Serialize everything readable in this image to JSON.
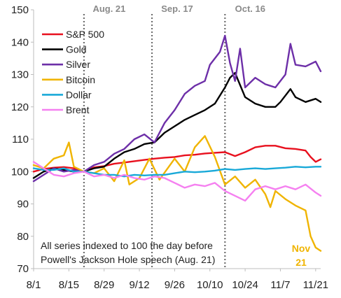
{
  "chart_data": {
    "type": "line",
    "ylim": [
      70,
      150
    ],
    "yticks": [
      70,
      80,
      90,
      100,
      110,
      120,
      130,
      140,
      150
    ],
    "xlim": [
      "2021-08-01",
      "2021-11-23"
    ],
    "xticks": [
      {
        "label": "8/1",
        "date": "2021-08-01"
      },
      {
        "label": "8/15",
        "date": "2021-08-15"
      },
      {
        "label": "8/29",
        "date": "2021-08-29"
      },
      {
        "label": "9/12",
        "date": "2021-09-12"
      },
      {
        "label": "9/26",
        "date": "2021-09-26"
      },
      {
        "label": "10/10",
        "date": "2021-10-10"
      },
      {
        "label": "10/24",
        "date": "2021-10-24"
      },
      {
        "label": "11/7",
        "date": "2021-11-07"
      },
      {
        "label": "11/21",
        "date": "2021-11-21"
      }
    ],
    "events": [
      {
        "label": "Aug. 21",
        "date": "2021-08-21"
      },
      {
        "label": "Sep. 17",
        "date": "2021-09-17"
      },
      {
        "label": "Oct. 16",
        "date": "2021-10-16"
      }
    ],
    "legend_position": "top-left",
    "grid": false,
    "annotation_lines": [
      "All series indexed to 100 the day before",
      "Powell's Jackson Hole speech (Aug. 21)"
    ],
    "end_label": {
      "lines": [
        "Nov",
        "21"
      ],
      "series": "Bitcoin"
    },
    "series": [
      {
        "name": "S&P 500",
        "color": "#e8101e",
        "x": [
          "2021-08-01",
          "2021-08-05",
          "2021-08-09",
          "2021-08-13",
          "2021-08-17",
          "2021-08-21",
          "2021-08-25",
          "2021-08-29",
          "2021-09-02",
          "2021-09-06",
          "2021-09-10",
          "2021-09-14",
          "2021-09-18",
          "2021-09-22",
          "2021-09-26",
          "2021-09-30",
          "2021-10-04",
          "2021-10-08",
          "2021-10-12",
          "2021-10-16",
          "2021-10-20",
          "2021-10-24",
          "2021-10-28",
          "2021-11-01",
          "2021-11-05",
          "2021-11-09",
          "2021-11-13",
          "2021-11-17",
          "2021-11-19",
          "2021-11-21",
          "2021-11-23"
        ],
        "y": [
          100.0,
          100.8,
          101.2,
          101.4,
          101.0,
          100.0,
          101.3,
          101.7,
          102.4,
          102.8,
          103.2,
          103.6,
          104.0,
          104.3,
          104.5,
          105.0,
          105.2,
          105.6,
          105.8,
          106.0,
          104.8,
          106.0,
          107.5,
          108.0,
          108.0,
          107.2,
          107.0,
          106.5,
          104.5,
          103.0,
          103.8
        ]
      },
      {
        "name": "Gold",
        "color": "#000000",
        "x": [
          "2021-08-01",
          "2021-08-05",
          "2021-08-09",
          "2021-08-13",
          "2021-08-17",
          "2021-08-21",
          "2021-08-25",
          "2021-08-29",
          "2021-09-02",
          "2021-09-06",
          "2021-09-10",
          "2021-09-14",
          "2021-09-18",
          "2021-09-22",
          "2021-09-26",
          "2021-09-30",
          "2021-10-04",
          "2021-10-08",
          "2021-10-12",
          "2021-10-16",
          "2021-10-18",
          "2021-10-20",
          "2021-10-24",
          "2021-10-28",
          "2021-11-01",
          "2021-11-05",
          "2021-11-07",
          "2021-11-11",
          "2021-11-13",
          "2021-11-17",
          "2021-11-21",
          "2021-11-23"
        ],
        "y": [
          98.0,
          100.0,
          101.0,
          100.5,
          100.0,
          100.0,
          101.0,
          101.5,
          104.0,
          106.0,
          107.0,
          108.5,
          109.0,
          112.0,
          114.0,
          116.0,
          117.5,
          119.0,
          121.0,
          126.0,
          129.0,
          130.5,
          123.0,
          121.0,
          120.0,
          120.0,
          121.5,
          125.5,
          123.0,
          121.5,
          122.5,
          121.5
        ]
      },
      {
        "name": "Silver",
        "color": "#6d2fa8",
        "x": [
          "2021-08-01",
          "2021-08-05",
          "2021-08-09",
          "2021-08-13",
          "2021-08-17",
          "2021-08-21",
          "2021-08-25",
          "2021-08-29",
          "2021-09-02",
          "2021-09-06",
          "2021-09-10",
          "2021-09-14",
          "2021-09-18",
          "2021-09-22",
          "2021-09-26",
          "2021-09-30",
          "2021-10-04",
          "2021-10-08",
          "2021-10-10",
          "2021-10-14",
          "2021-10-16",
          "2021-10-18",
          "2021-10-20",
          "2021-10-22",
          "2021-10-24",
          "2021-10-28",
          "2021-11-01",
          "2021-11-05",
          "2021-11-09",
          "2021-11-11",
          "2021-11-13",
          "2021-11-17",
          "2021-11-21",
          "2021-11-23"
        ],
        "y": [
          97.0,
          99.0,
          101.0,
          100.0,
          100.5,
          100.0,
          102.0,
          103.0,
          105.5,
          107.0,
          110.0,
          111.5,
          109.0,
          115.0,
          119.0,
          124.0,
          126.5,
          128.0,
          133.0,
          137.0,
          142.0,
          133.5,
          128.0,
          138.0,
          126.0,
          129.0,
          127.0,
          126.0,
          130.0,
          139.5,
          133.0,
          132.5,
          134.0,
          131.0
        ]
      },
      {
        "name": "Bitcoin",
        "color": "#f0b400",
        "x": [
          "2021-08-01",
          "2021-08-05",
          "2021-08-09",
          "2021-08-13",
          "2021-08-15",
          "2021-08-17",
          "2021-08-21",
          "2021-08-25",
          "2021-08-29",
          "2021-09-02",
          "2021-09-06",
          "2021-09-08",
          "2021-09-12",
          "2021-09-16",
          "2021-09-20",
          "2021-09-26",
          "2021-09-30",
          "2021-10-04",
          "2021-10-08",
          "2021-10-12",
          "2021-10-16",
          "2021-10-20",
          "2021-10-24",
          "2021-10-28",
          "2021-11-01",
          "2021-11-03",
          "2021-11-05",
          "2021-11-09",
          "2021-11-13",
          "2021-11-17",
          "2021-11-19",
          "2021-11-21",
          "2021-11-23"
        ],
        "y": [
          102.0,
          101.0,
          104.0,
          105.0,
          109.0,
          101.5,
          100.0,
          99.5,
          101.0,
          97.0,
          103.5,
          96.0,
          98.0,
          104.0,
          97.5,
          104.0,
          100.0,
          107.5,
          111.0,
          104.5,
          96.0,
          98.5,
          95.0,
          97.5,
          93.0,
          89.0,
          94.0,
          91.5,
          89.5,
          88.0,
          80.0,
          76.5,
          75.5
        ]
      },
      {
        "name": "Dollar",
        "color": "#19a9d8",
        "x": [
          "2021-08-01",
          "2021-08-05",
          "2021-08-09",
          "2021-08-13",
          "2021-08-17",
          "2021-08-21",
          "2021-08-25",
          "2021-08-29",
          "2021-09-02",
          "2021-09-06",
          "2021-09-10",
          "2021-09-14",
          "2021-09-18",
          "2021-09-22",
          "2021-09-26",
          "2021-09-30",
          "2021-10-04",
          "2021-10-08",
          "2021-10-12",
          "2021-10-16",
          "2021-10-20",
          "2021-10-24",
          "2021-10-28",
          "2021-11-01",
          "2021-11-05",
          "2021-11-09",
          "2021-11-13",
          "2021-11-17",
          "2021-11-21",
          "2021-11-23"
        ],
        "y": [
          101.0,
          100.5,
          100.5,
          101.0,
          100.0,
          100.0,
          99.5,
          99.0,
          99.0,
          98.5,
          99.0,
          98.8,
          99.0,
          99.0,
          99.5,
          100.0,
          99.8,
          100.0,
          100.3,
          100.8,
          100.5,
          100.8,
          101.0,
          100.8,
          101.0,
          101.2,
          101.5,
          101.3,
          101.5,
          101.5
        ]
      },
      {
        "name": "Brent",
        "color": "#f580f0",
        "x": [
          "2021-08-01",
          "2021-08-05",
          "2021-08-09",
          "2021-08-13",
          "2021-08-17",
          "2021-08-21",
          "2021-08-25",
          "2021-08-29",
          "2021-09-02",
          "2021-09-06",
          "2021-09-10",
          "2021-09-14",
          "2021-09-18",
          "2021-09-22",
          "2021-09-26",
          "2021-09-30",
          "2021-10-04",
          "2021-10-08",
          "2021-10-12",
          "2021-10-16",
          "2021-10-20",
          "2021-10-24",
          "2021-10-28",
          "2021-11-01",
          "2021-11-05",
          "2021-11-09",
          "2021-11-13",
          "2021-11-17",
          "2021-11-21",
          "2021-11-23"
        ],
        "y": [
          103.0,
          101.0,
          99.0,
          98.5,
          99.5,
          100.0,
          98.5,
          99.0,
          98.0,
          99.0,
          98.0,
          97.5,
          98.5,
          98.0,
          96.5,
          95.0,
          96.0,
          95.5,
          96.5,
          94.0,
          92.5,
          91.0,
          94.5,
          95.5,
          94.5,
          95.5,
          94.5,
          96.0,
          93.5,
          92.5
        ]
      }
    ]
  }
}
